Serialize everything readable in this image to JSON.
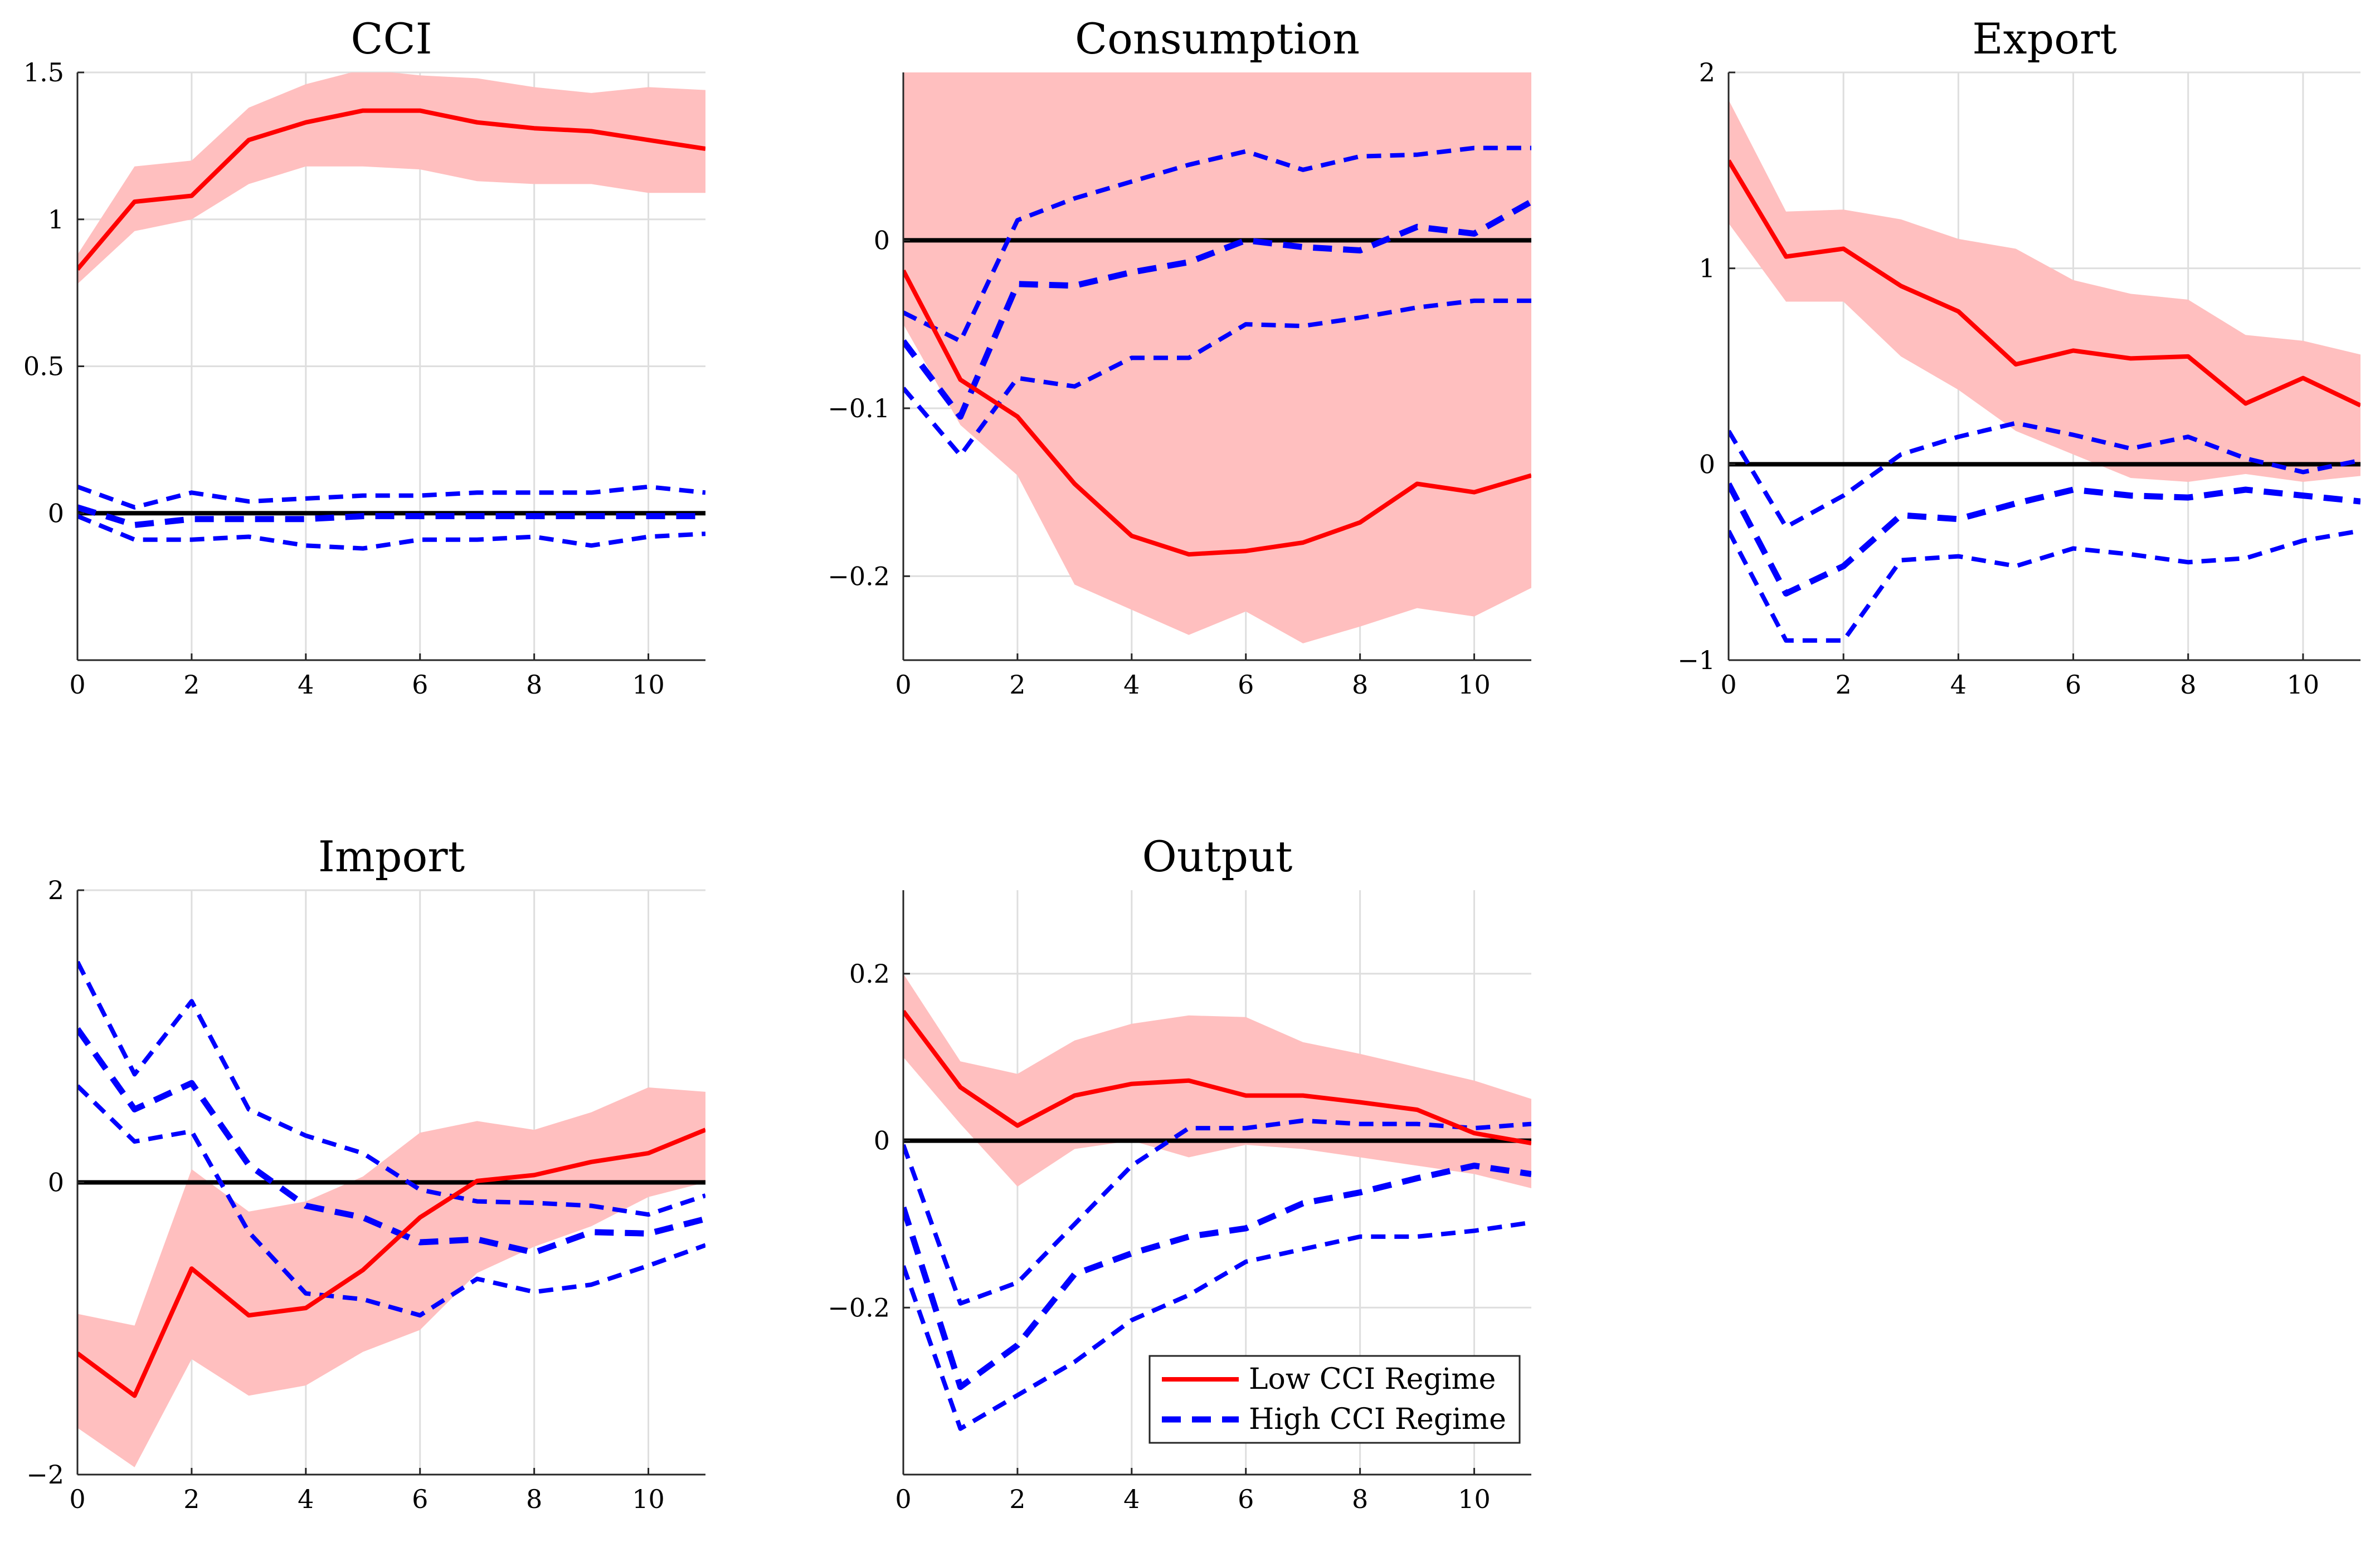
{
  "chart_data": [
    {
      "type": "line",
      "title": "CCI",
      "x": [
        0,
        1,
        2,
        3,
        4,
        5,
        6,
        7,
        8,
        9,
        10,
        11
      ],
      "xlim": [
        0,
        11
      ],
      "ylim": [
        -0.5,
        1.5
      ],
      "xticks": [
        0,
        2,
        4,
        6,
        8,
        10
      ],
      "xtick_labels": [
        "0",
        "2",
        "4",
        "6",
        "8",
        "10"
      ],
      "yticks": [
        0,
        0.5,
        1,
        1.5
      ],
      "ytick_labels": [
        "0",
        "0.5",
        "1",
        "1.5"
      ],
      "zero_line": true,
      "grid": true,
      "series": [
        {
          "name": "Low CCI Regime",
          "role": "median",
          "color": "#ff0000",
          "style": "solid",
          "values": [
            0.83,
            1.06,
            1.08,
            1.27,
            1.33,
            1.37,
            1.37,
            1.33,
            1.31,
            1.3,
            1.27,
            1.24
          ]
        },
        {
          "name": "Low CCI Regime band",
          "role": "band",
          "color": "#ffbfbf",
          "lower": [
            0.78,
            0.96,
            1.0,
            1.12,
            1.18,
            1.18,
            1.17,
            1.13,
            1.12,
            1.12,
            1.09,
            1.09
          ],
          "upper": [
            0.88,
            1.18,
            1.2,
            1.38,
            1.46,
            1.51,
            1.49,
            1.48,
            1.45,
            1.43,
            1.45,
            1.44
          ]
        },
        {
          "name": "High CCI Regime",
          "role": "median",
          "color": "#0000ff",
          "style": "dashed-thick",
          "values": [
            0.02,
            -0.04,
            -0.02,
            -0.02,
            -0.02,
            -0.01,
            -0.01,
            -0.01,
            -0.01,
            -0.01,
            -0.01,
            -0.01
          ]
        },
        {
          "name": "High CCI Regime upper",
          "role": "bound",
          "color": "#0000ff",
          "style": "dashed",
          "values": [
            0.09,
            0.02,
            0.07,
            0.04,
            0.05,
            0.06,
            0.06,
            0.07,
            0.07,
            0.07,
            0.09,
            0.07
          ]
        },
        {
          "name": "High CCI Regime lower",
          "role": "bound",
          "color": "#0000ff",
          "style": "dashed",
          "values": [
            -0.01,
            -0.09,
            -0.09,
            -0.08,
            -0.11,
            -0.12,
            -0.09,
            -0.09,
            -0.08,
            -0.11,
            -0.08,
            -0.07
          ]
        }
      ]
    },
    {
      "type": "line",
      "title": "Consumption",
      "x": [
        0,
        1,
        2,
        3,
        4,
        5,
        6,
        7,
        8,
        9,
        10,
        11
      ],
      "xlim": [
        0,
        11
      ],
      "ylim": [
        -0.25,
        0.1
      ],
      "xticks": [
        0,
        2,
        4,
        6,
        8,
        10
      ],
      "xtick_labels": [
        "0",
        "2",
        "4",
        "6",
        "8",
        "10"
      ],
      "yticks": [
        -0.2,
        -0.1,
        0
      ],
      "ytick_labels": [
        "−0.2",
        "−0.1",
        "0"
      ],
      "zero_line": true,
      "grid": true,
      "series": [
        {
          "name": "Low CCI Regime",
          "role": "median",
          "color": "#ff0000",
          "style": "solid",
          "values": [
            -0.018,
            -0.083,
            -0.105,
            -0.145,
            -0.176,
            -0.187,
            -0.185,
            -0.18,
            -0.168,
            -0.145,
            -0.15,
            -0.14
          ]
        },
        {
          "name": "Low CCI Regime band",
          "role": "band",
          "color": "#ffbfbf",
          "lower": [
            -0.05,
            -0.11,
            -0.14,
            -0.205,
            -0.22,
            -0.235,
            -0.221,
            -0.24,
            -0.23,
            -0.219,
            -0.224,
            -0.207
          ]
        },
        {
          "name": "High CCI Regime",
          "role": "median",
          "color": "#0000ff",
          "style": "dashed-thick",
          "values": [
            -0.06,
            -0.105,
            -0.026,
            -0.027,
            -0.019,
            -0.013,
            0.0,
            -0.004,
            -0.006,
            0.008,
            0.004,
            0.023
          ]
        },
        {
          "name": "High CCI Regime upper",
          "role": "bound",
          "color": "#0000ff",
          "style": "dashed",
          "values": [
            -0.043,
            -0.06,
            0.012,
            0.025,
            0.035,
            0.045,
            0.053,
            0.042,
            0.05,
            0.051,
            0.055,
            0.055
          ]
        },
        {
          "name": "High CCI Regime lower",
          "role": "bound",
          "color": "#0000ff",
          "style": "dashed",
          "values": [
            -0.088,
            -0.128,
            -0.082,
            -0.087,
            -0.07,
            -0.07,
            -0.05,
            -0.051,
            -0.046,
            -0.04,
            -0.036,
            -0.036
          ]
        }
      ]
    },
    {
      "type": "line",
      "title": "Export",
      "x": [
        0,
        1,
        2,
        3,
        4,
        5,
        6,
        7,
        8,
        9,
        10,
        11
      ],
      "xlim": [
        0,
        11
      ],
      "ylim": [
        -1,
        2
      ],
      "xticks": [
        0,
        2,
        4,
        6,
        8,
        10
      ],
      "xtick_labels": [
        "0",
        "2",
        "4",
        "6",
        "8",
        "10"
      ],
      "yticks": [
        -1,
        0,
        1,
        2
      ],
      "ytick_labels": [
        "−1",
        "0",
        "1",
        "2"
      ],
      "zero_line": true,
      "grid": true,
      "series": [
        {
          "name": "Low CCI Regime",
          "role": "median",
          "color": "#ff0000",
          "style": "solid",
          "values": [
            1.55,
            1.06,
            1.1,
            0.91,
            0.78,
            0.51,
            0.58,
            0.54,
            0.55,
            0.31,
            0.44,
            0.3
          ]
        },
        {
          "name": "Low CCI Regime band",
          "role": "band",
          "color": "#ffbfbf",
          "lower": [
            1.23,
            0.83,
            0.83,
            0.55,
            0.38,
            0.17,
            0.05,
            -0.07,
            -0.09,
            -0.05,
            -0.09,
            -0.06
          ],
          "upper": [
            1.86,
            1.29,
            1.3,
            1.25,
            1.15,
            1.1,
            0.94,
            0.87,
            0.84,
            0.66,
            0.63,
            0.56
          ]
        },
        {
          "name": "High CCI Regime",
          "role": "median",
          "color": "#0000ff",
          "style": "dashed-thick",
          "values": [
            -0.1,
            -0.66,
            -0.52,
            -0.26,
            -0.28,
            -0.2,
            -0.13,
            -0.16,
            -0.17,
            -0.13,
            -0.16,
            -0.19
          ]
        },
        {
          "name": "High CCI Regime upper",
          "role": "bound",
          "color": "#0000ff",
          "style": "dashed",
          "values": [
            0.17,
            -0.32,
            -0.16,
            0.05,
            0.14,
            0.21,
            0.15,
            0.08,
            0.14,
            0.03,
            -0.04,
            0.02
          ]
        },
        {
          "name": "High CCI Regime lower",
          "role": "bound",
          "color": "#0000ff",
          "style": "dashed",
          "values": [
            -0.34,
            -0.9,
            -0.9,
            -0.49,
            -0.47,
            -0.52,
            -0.43,
            -0.46,
            -0.5,
            -0.48,
            -0.39,
            -0.34
          ]
        }
      ]
    },
    {
      "type": "line",
      "title": "Import",
      "x": [
        0,
        1,
        2,
        3,
        4,
        5,
        6,
        7,
        8,
        9,
        10,
        11
      ],
      "xlim": [
        0,
        11
      ],
      "ylim": [
        -2,
        2
      ],
      "xticks": [
        0,
        2,
        4,
        6,
        8,
        10
      ],
      "xtick_labels": [
        "0",
        "2",
        "4",
        "6",
        "8",
        "10"
      ],
      "yticks": [
        -2,
        0,
        2
      ],
      "ytick_labels": [
        "−2",
        "0",
        "2"
      ],
      "zero_line": true,
      "grid": true,
      "series": [
        {
          "name": "Low CCI Regime",
          "role": "median",
          "color": "#ff0000",
          "style": "solid",
          "values": [
            -1.17,
            -1.46,
            -0.59,
            -0.91,
            -0.86,
            -0.6,
            -0.24,
            0.01,
            0.05,
            0.14,
            0.2,
            0.36
          ]
        },
        {
          "name": "Low CCI Regime band",
          "role": "band",
          "color": "#ffbfbf",
          "lower": [
            -1.68,
            -1.95,
            -1.21,
            -1.46,
            -1.39,
            -1.16,
            -1.01,
            -0.62,
            -0.44,
            -0.3,
            -0.1,
            0.0
          ],
          "upper": [
            -0.9,
            -0.98,
            0.09,
            -0.2,
            -0.13,
            0.04,
            0.34,
            0.42,
            0.36,
            0.48,
            0.65,
            0.62
          ]
        },
        {
          "name": "High CCI Regime",
          "role": "median",
          "color": "#0000ff",
          "style": "dashed-thick",
          "values": [
            1.05,
            0.5,
            0.68,
            0.12,
            -0.16,
            -0.24,
            -0.41,
            -0.39,
            -0.48,
            -0.34,
            -0.35,
            -0.25
          ]
        },
        {
          "name": "High CCI Regime upper",
          "role": "bound",
          "color": "#0000ff",
          "style": "dashed",
          "values": [
            1.51,
            0.74,
            1.24,
            0.5,
            0.32,
            0.2,
            -0.05,
            -0.13,
            -0.14,
            -0.16,
            -0.22,
            -0.09
          ]
        },
        {
          "name": "High CCI Regime lower",
          "role": "bound",
          "color": "#0000ff",
          "style": "dashed",
          "values": [
            0.66,
            0.28,
            0.35,
            -0.34,
            -0.76,
            -0.8,
            -0.91,
            -0.66,
            -0.75,
            -0.7,
            -0.57,
            -0.43
          ]
        }
      ]
    },
    {
      "type": "line",
      "title": "Output",
      "x": [
        0,
        1,
        2,
        3,
        4,
        5,
        6,
        7,
        8,
        9,
        10,
        11
      ],
      "xlim": [
        0,
        11
      ],
      "ylim": [
        -0.4,
        0.3
      ],
      "xticks": [
        0,
        2,
        4,
        6,
        8,
        10
      ],
      "xtick_labels": [
        "0",
        "2",
        "4",
        "6",
        "8",
        "10"
      ],
      "yticks": [
        -0.2,
        0,
        0.2
      ],
      "ytick_labels": [
        "−0.2",
        "0",
        "0.2"
      ],
      "zero_line": true,
      "grid": true,
      "series": [
        {
          "name": "Low CCI Regime",
          "role": "median",
          "color": "#ff0000",
          "style": "solid",
          "values": [
            0.155,
            0.064,
            0.018,
            0.054,
            0.068,
            0.072,
            0.054,
            0.054,
            0.046,
            0.037,
            0.009,
            -0.003
          ]
        },
        {
          "name": "Low CCI Regime band",
          "role": "band",
          "color": "#ffbfbf",
          "lower": [
            0.1,
            0.02,
            -0.055,
            -0.01,
            0.0,
            -0.02,
            -0.005,
            -0.01,
            -0.02,
            -0.03,
            -0.04,
            -0.057
          ],
          "upper": [
            0.2,
            0.095,
            0.08,
            0.12,
            0.14,
            0.15,
            0.148,
            0.118,
            0.104,
            0.088,
            0.072,
            0.05
          ]
        },
        {
          "name": "High CCI Regime",
          "role": "median",
          "color": "#0000ff",
          "style": "dashed-thick",
          "values": [
            -0.08,
            -0.295,
            -0.245,
            -0.16,
            -0.135,
            -0.115,
            -0.105,
            -0.075,
            -0.062,
            -0.045,
            -0.03,
            -0.04
          ]
        },
        {
          "name": "High CCI Regime upper",
          "role": "bound",
          "color": "#0000ff",
          "style": "dashed",
          "values": [
            -0.005,
            -0.195,
            -0.17,
            -0.1,
            -0.03,
            0.015,
            0.015,
            0.024,
            0.02,
            0.02,
            0.015,
            0.02
          ]
        },
        {
          "name": "High CCI Regime lower",
          "role": "bound",
          "color": "#0000ff",
          "style": "dashed",
          "values": [
            -0.15,
            -0.345,
            -0.305,
            -0.265,
            -0.215,
            -0.185,
            -0.145,
            -0.13,
            -0.115,
            -0.115,
            -0.108,
            -0.098
          ]
        }
      ],
      "legend": {
        "location": "bottom-right",
        "entries": [
          {
            "label": "Low CCI Regime",
            "color": "#ff0000",
            "style": "solid"
          },
          {
            "label": "High CCI Regime",
            "color": "#0000ff",
            "style": "dashed"
          }
        ]
      }
    }
  ]
}
